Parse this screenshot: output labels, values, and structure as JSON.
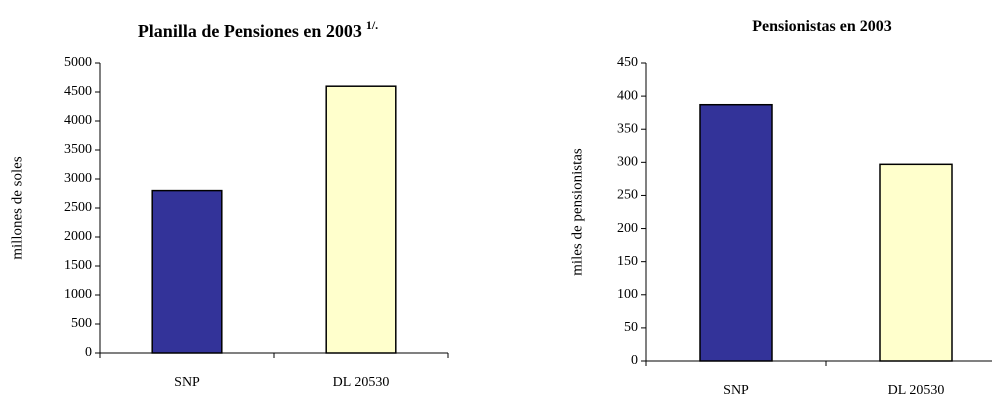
{
  "chart_data": [
    {
      "type": "bar",
      "title": "Planilla de Pensiones en 2003",
      "title_superscript": "1/.",
      "y_label": "millones de soles",
      "categories": [
        "SNP",
        "DL 20530"
      ],
      "values": [
        2800,
        4600
      ],
      "colors": [
        "#333399",
        "#ffffcc"
      ],
      "ylim": [
        0,
        5000
      ],
      "yticks": [
        0,
        500,
        1000,
        1500,
        2000,
        2500,
        3000,
        3500,
        4000,
        4500,
        5000
      ]
    },
    {
      "type": "bar",
      "title": "Pensionistas en 2003",
      "y_label": "miles de pensionistas",
      "categories": [
        "SNP",
        "DL 20530"
      ],
      "values": [
        387,
        297
      ],
      "colors": [
        "#333399",
        "#ffffcc"
      ],
      "ylim": [
        0,
        450
      ],
      "yticks": [
        0,
        50,
        100,
        150,
        200,
        250,
        300,
        350,
        400,
        450
      ]
    }
  ]
}
